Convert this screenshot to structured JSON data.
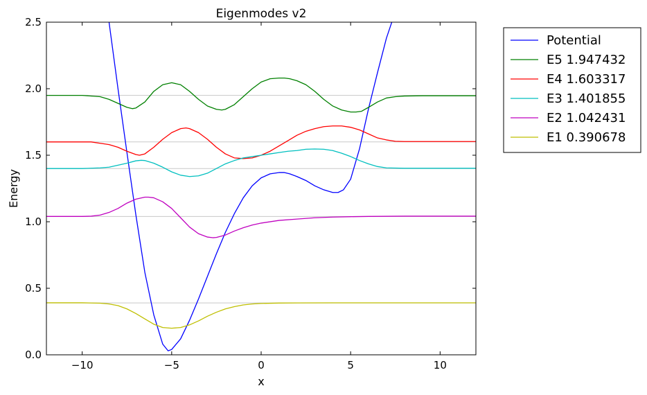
{
  "chart_data": {
    "type": "line",
    "title": "Eigenmodes v2",
    "xlabel": "x",
    "ylabel": "Energy",
    "xlim": [
      -12,
      12
    ],
    "ylim": [
      0.0,
      2.5
    ],
    "xticks": [
      -10,
      -5,
      0,
      5,
      10
    ],
    "xtick_labels": [
      "−10",
      "−5",
      "0",
      "5",
      "10"
    ],
    "yticks": [
      0.0,
      0.5,
      1.0,
      1.5,
      2.0,
      2.5
    ],
    "ytick_labels": [
      "0.0",
      "0.5",
      "1.0",
      "1.5",
      "2.0",
      "2.5"
    ],
    "legend_position": "outside-right",
    "reference_lines": [
      0.39,
      1.04,
      1.4,
      1.6,
      1.95
    ],
    "series": [
      {
        "name": "Potential",
        "color": "#0000ff",
        "x": [
          -8.5,
          -8.0,
          -7.5,
          -7.0,
          -6.5,
          -6.0,
          -5.5,
          -5.2,
          -5.0,
          -4.5,
          -4.0,
          -3.5,
          -3.0,
          -2.5,
          -2.0,
          -1.5,
          -1.0,
          -0.5,
          0.0,
          0.5,
          1.0,
          1.3,
          1.6,
          2.0,
          2.5,
          3.0,
          3.5,
          4.0,
          4.3,
          4.6,
          5.0,
          5.5,
          6.0,
          6.5,
          7.0,
          7.3
        ],
        "y": [
          2.5,
          2.0,
          1.52,
          1.05,
          0.62,
          0.3,
          0.08,
          0.03,
          0.04,
          0.12,
          0.26,
          0.42,
          0.59,
          0.76,
          0.92,
          1.06,
          1.18,
          1.27,
          1.33,
          1.36,
          1.37,
          1.37,
          1.36,
          1.34,
          1.31,
          1.27,
          1.24,
          1.22,
          1.22,
          1.24,
          1.32,
          1.55,
          1.85,
          2.12,
          2.38,
          2.5
        ]
      },
      {
        "name": "E5 1.947432",
        "color": "#008000",
        "x": [
          -12,
          -10,
          -9,
          -8.5,
          -8,
          -7.5,
          -7.2,
          -7,
          -6.5,
          -6,
          -5.5,
          -5,
          -4.5,
          -4,
          -3.5,
          -3,
          -2.5,
          -2.2,
          -2,
          -1.5,
          -1,
          -0.5,
          0,
          0.5,
          1,
          1.3,
          1.6,
          2,
          2.5,
          3,
          3.5,
          4,
          4.5,
          5,
          5.3,
          5.6,
          6,
          6.5,
          7,
          7.5,
          8,
          9,
          10,
          12
        ],
        "y": [
          1.95,
          1.95,
          1.94,
          1.92,
          1.89,
          1.86,
          1.85,
          1.855,
          1.9,
          1.98,
          2.03,
          2.045,
          2.03,
          1.98,
          1.92,
          1.87,
          1.845,
          1.84,
          1.845,
          1.88,
          1.94,
          2.0,
          2.05,
          2.075,
          2.08,
          2.08,
          2.075,
          2.06,
          2.03,
          1.98,
          1.92,
          1.87,
          1.84,
          1.825,
          1.825,
          1.83,
          1.86,
          1.9,
          1.93,
          1.94,
          1.945,
          1.947,
          1.947,
          1.947
        ]
      },
      {
        "name": "E4 1.603317",
        "color": "#ff0000",
        "x": [
          -12,
          -10,
          -9.5,
          -9,
          -8.5,
          -8,
          -7.5,
          -7,
          -6.8,
          -6.5,
          -6,
          -5.5,
          -5,
          -4.5,
          -4.2,
          -4,
          -3.5,
          -3,
          -2.5,
          -2,
          -1.5,
          -1,
          -0.5,
          0,
          0.5,
          1,
          1.5,
          2,
          2.5,
          3,
          3.5,
          4,
          4.5,
          5,
          5.5,
          6,
          6.5,
          7,
          7.5,
          8,
          9,
          10,
          12
        ],
        "y": [
          1.6,
          1.6,
          1.6,
          1.59,
          1.58,
          1.56,
          1.53,
          1.505,
          1.5,
          1.51,
          1.56,
          1.62,
          1.67,
          1.7,
          1.705,
          1.7,
          1.67,
          1.62,
          1.56,
          1.51,
          1.48,
          1.475,
          1.48,
          1.5,
          1.53,
          1.57,
          1.61,
          1.65,
          1.68,
          1.7,
          1.715,
          1.72,
          1.72,
          1.71,
          1.69,
          1.66,
          1.63,
          1.615,
          1.605,
          1.603,
          1.603,
          1.603,
          1.603
        ]
      },
      {
        "name": "E3 1.401855",
        "color": "#00bfbf",
        "x": [
          -12,
          -10,
          -9,
          -8.5,
          -8,
          -7.5,
          -7,
          -6.7,
          -6.5,
          -6,
          -5.5,
          -5,
          -4.5,
          -4,
          -3.5,
          -3,
          -2.5,
          -2,
          -1.5,
          -1,
          -0.5,
          0,
          0.5,
          1,
          1.5,
          2,
          2.5,
          3,
          3.5,
          4,
          4.5,
          5,
          5.5,
          6,
          6.5,
          7,
          8,
          9,
          10,
          12
        ],
        "y": [
          1.4,
          1.4,
          1.405,
          1.41,
          1.425,
          1.44,
          1.458,
          1.462,
          1.46,
          1.44,
          1.41,
          1.375,
          1.35,
          1.34,
          1.345,
          1.365,
          1.4,
          1.435,
          1.46,
          1.48,
          1.49,
          1.5,
          1.51,
          1.52,
          1.53,
          1.535,
          1.545,
          1.547,
          1.545,
          1.535,
          1.515,
          1.49,
          1.46,
          1.435,
          1.415,
          1.405,
          1.402,
          1.402,
          1.402,
          1.402
        ]
      },
      {
        "name": "E2 1.042431",
        "color": "#bf00bf",
        "x": [
          -12,
          -10,
          -9.5,
          -9,
          -8.5,
          -8,
          -7.5,
          -7,
          -6.5,
          -6.3,
          -6,
          -5.5,
          -5,
          -4.5,
          -4,
          -3.5,
          -3,
          -2.7,
          -2.5,
          -2,
          -1.5,
          -1,
          -0.5,
          0,
          1,
          2,
          3,
          4,
          5,
          6,
          8,
          10,
          12
        ],
        "y": [
          1.04,
          1.04,
          1.042,
          1.05,
          1.07,
          1.1,
          1.14,
          1.17,
          1.185,
          1.185,
          1.18,
          1.15,
          1.1,
          1.03,
          0.96,
          0.91,
          0.885,
          0.88,
          0.882,
          0.9,
          0.93,
          0.955,
          0.975,
          0.99,
          1.01,
          1.02,
          1.03,
          1.035,
          1.038,
          1.04,
          1.042,
          1.042,
          1.042
        ]
      },
      {
        "name": "E1 0.390678",
        "color": "#bfbf00",
        "x": [
          -12,
          -10,
          -9,
          -8.5,
          -8,
          -7.5,
          -7,
          -6.5,
          -6,
          -5.5,
          -5,
          -4.5,
          -4,
          -3.5,
          -3,
          -2.5,
          -2,
          -1.5,
          -1,
          -0.5,
          0,
          1,
          2,
          4,
          6,
          8,
          10,
          12
        ],
        "y": [
          0.391,
          0.391,
          0.388,
          0.382,
          0.37,
          0.345,
          0.31,
          0.27,
          0.23,
          0.205,
          0.2,
          0.205,
          0.225,
          0.255,
          0.29,
          0.32,
          0.345,
          0.362,
          0.375,
          0.382,
          0.386,
          0.389,
          0.39,
          0.3907,
          0.3907,
          0.3907,
          0.3907,
          0.3907
        ]
      }
    ]
  }
}
